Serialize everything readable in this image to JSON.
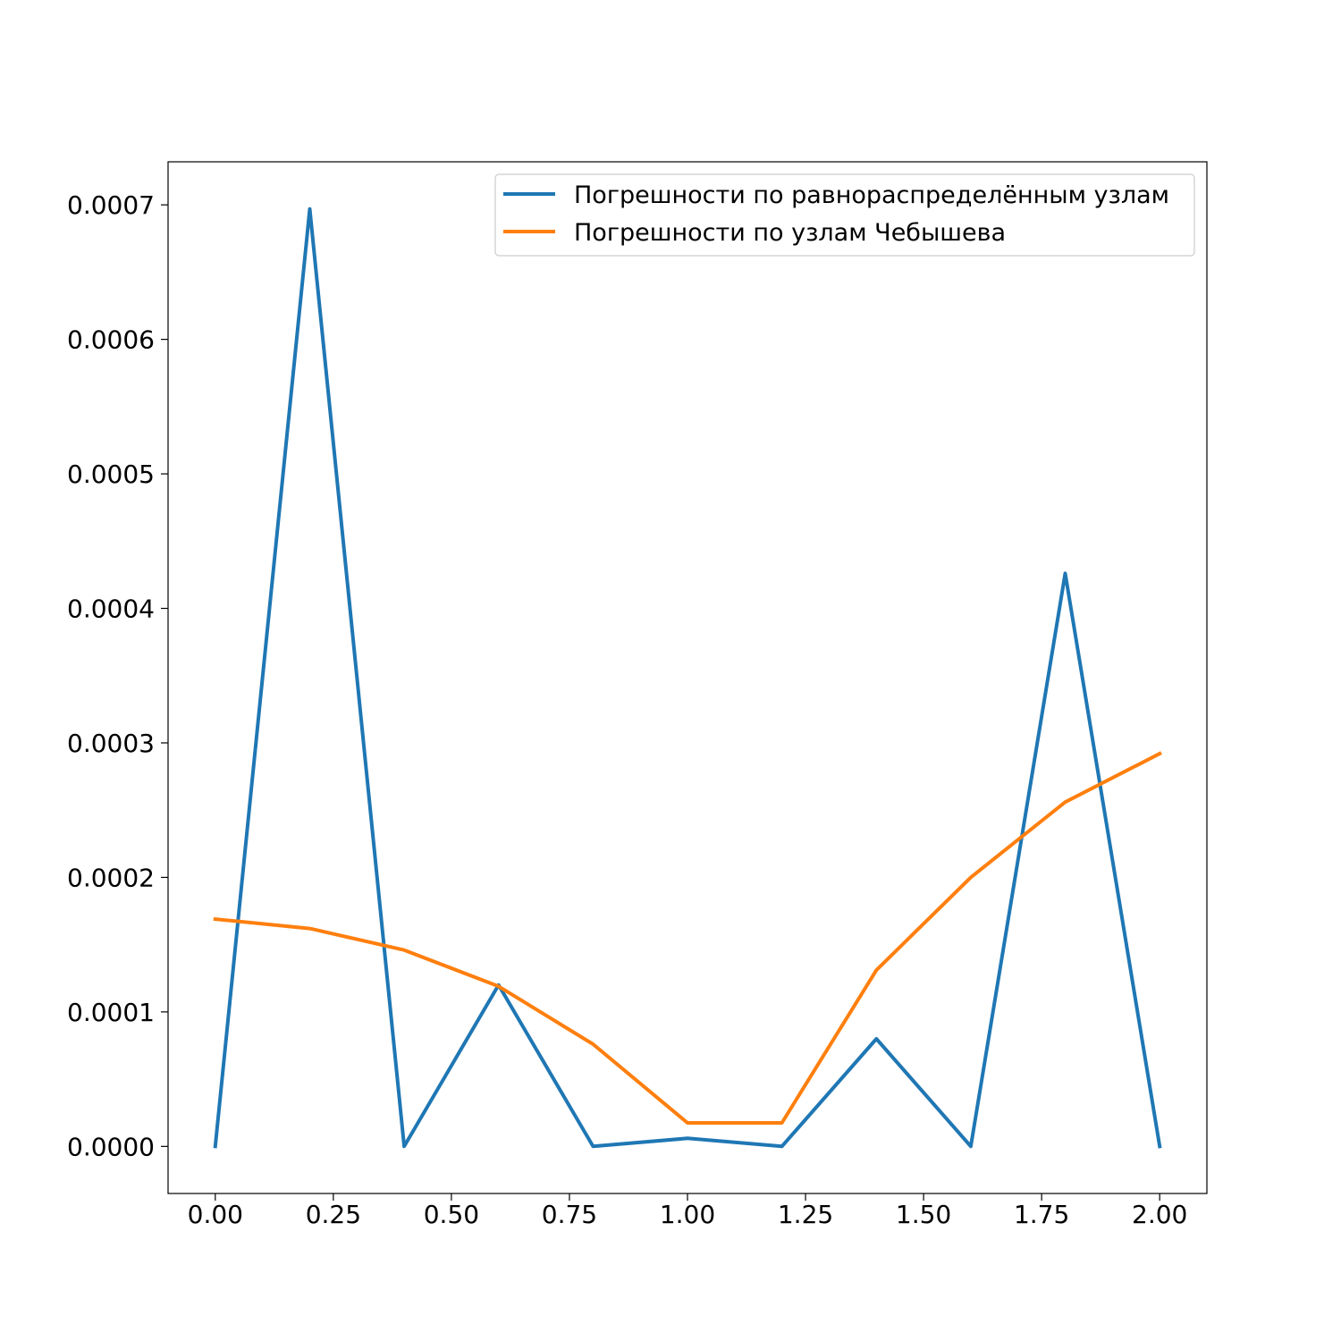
{
  "chart_data": {
    "type": "line",
    "title": "",
    "xlabel": "",
    "ylabel": "",
    "x": [
      0.0,
      0.2,
      0.4,
      0.6,
      0.8,
      1.0,
      1.2,
      1.4,
      1.6,
      1.8,
      2.0
    ],
    "xlim": [
      -0.1,
      2.1
    ],
    "ylim": [
      -3.5e-05,
      0.000732
    ],
    "xticks": [
      "0.00",
      "0.25",
      "0.50",
      "0.75",
      "1.00",
      "1.25",
      "1.50",
      "1.75",
      "2.00"
    ],
    "yticks": [
      "0.0000",
      "0.0001",
      "0.0002",
      "0.0003",
      "0.0004",
      "0.0005",
      "0.0006",
      "0.0007"
    ],
    "xtick_values": [
      0.0,
      0.25,
      0.5,
      0.75,
      1.0,
      1.25,
      1.5,
      1.75,
      2.0
    ],
    "ytick_values": [
      0.0,
      0.0001,
      0.0002,
      0.0003,
      0.0004,
      0.0005,
      0.0006,
      0.0007
    ],
    "grid": false,
    "legend_position": "top-right",
    "series": [
      {
        "name": "Погрешности по равнораспределённым узлам",
        "color": "#1f77b4",
        "values": [
          0.0,
          0.000697,
          0.0,
          0.00012,
          0.0,
          6e-06,
          0.0,
          8e-05,
          0.0,
          0.000426,
          0.0
        ]
      },
      {
        "name": "Погрешности по узлам Чебышева",
        "color": "#ff7f0e",
        "values": [
          0.000169,
          0.000162,
          0.000146,
          0.000119,
          7.6e-05,
          1.75e-05,
          1.75e-05,
          0.000131,
          0.0002,
          0.000256,
          0.000292
        ]
      }
    ]
  }
}
